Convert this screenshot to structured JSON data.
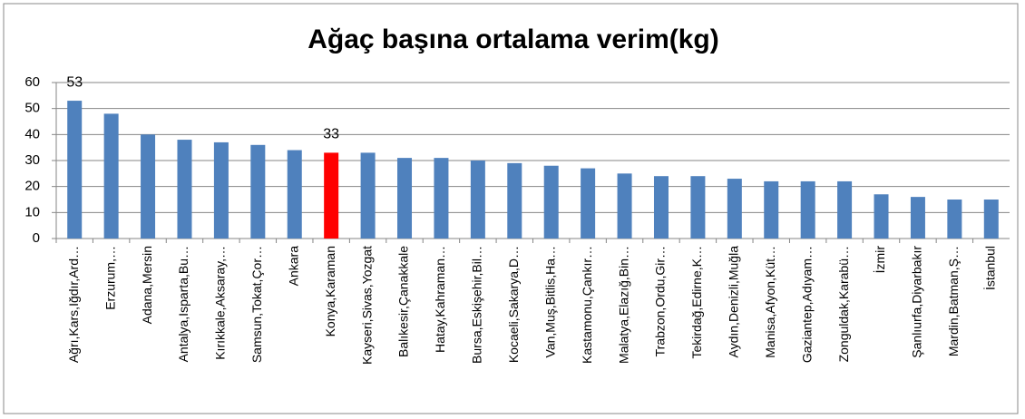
{
  "chart_data": {
    "type": "bar",
    "title": "Ağaç başına ortalama verim(kg)",
    "categories": [
      "Ağrı,Kars,Iğdır,Ard…",
      "Erzurum,…",
      "Adana,Mersin",
      "Antalya,Isparta,Bu…",
      "Kırıkkale,Aksaray,…",
      "Samsun,Tokat,Çor…",
      "Ankara",
      "Konya,Karaman",
      "Kayseri,Sivas,Yozgat",
      "Balıkesir,Çanakkale",
      "Hatay,Kahraman…",
      "Bursa,Eskişehir,Bil…",
      "Kocaeli,Sakarya,D…",
      "Van,Muş,Bitlis,Ha…",
      "Kastamonu,Çankır…",
      "Malatya,Elazığ,Bin…",
      "Trabzon,Ordu,Gir…",
      "Tekirdağ,Edirne,K…",
      "Aydın,Denizli,Muğla",
      "Manisa,Afyon,Küt…",
      "Gaziantep,Adıyam…",
      "Zonguldak,Karabü…",
      "İzmir",
      "Şanlıurfa,Diyarbakır",
      "Mardin,Batman,Ş…",
      "İstanbul"
    ],
    "values": [
      53,
      48,
      40,
      38,
      37,
      36,
      34,
      33,
      33,
      31,
      31,
      30,
      29,
      28,
      27,
      25,
      24,
      24,
      23,
      22,
      22,
      22,
      17,
      16,
      15,
      15
    ],
    "value_labels": [
      "53",
      null,
      null,
      null,
      null,
      null,
      null,
      "33",
      null,
      null,
      null,
      null,
      null,
      null,
      null,
      null,
      null,
      null,
      null,
      null,
      null,
      null,
      null,
      null,
      null,
      null
    ],
    "colors": [
      "#4f81bd",
      "#4f81bd",
      "#4f81bd",
      "#4f81bd",
      "#4f81bd",
      "#4f81bd",
      "#4f81bd",
      "#ff0000",
      "#4f81bd",
      "#4f81bd",
      "#4f81bd",
      "#4f81bd",
      "#4f81bd",
      "#4f81bd",
      "#4f81bd",
      "#4f81bd",
      "#4f81bd",
      "#4f81bd",
      "#4f81bd",
      "#4f81bd",
      "#4f81bd",
      "#4f81bd",
      "#4f81bd",
      "#4f81bd",
      "#4f81bd",
      "#4f81bd"
    ],
    "ylim": [
      0,
      60
    ],
    "yticks": [
      0,
      10,
      20,
      30,
      40,
      50,
      60
    ],
    "grid": true
  }
}
